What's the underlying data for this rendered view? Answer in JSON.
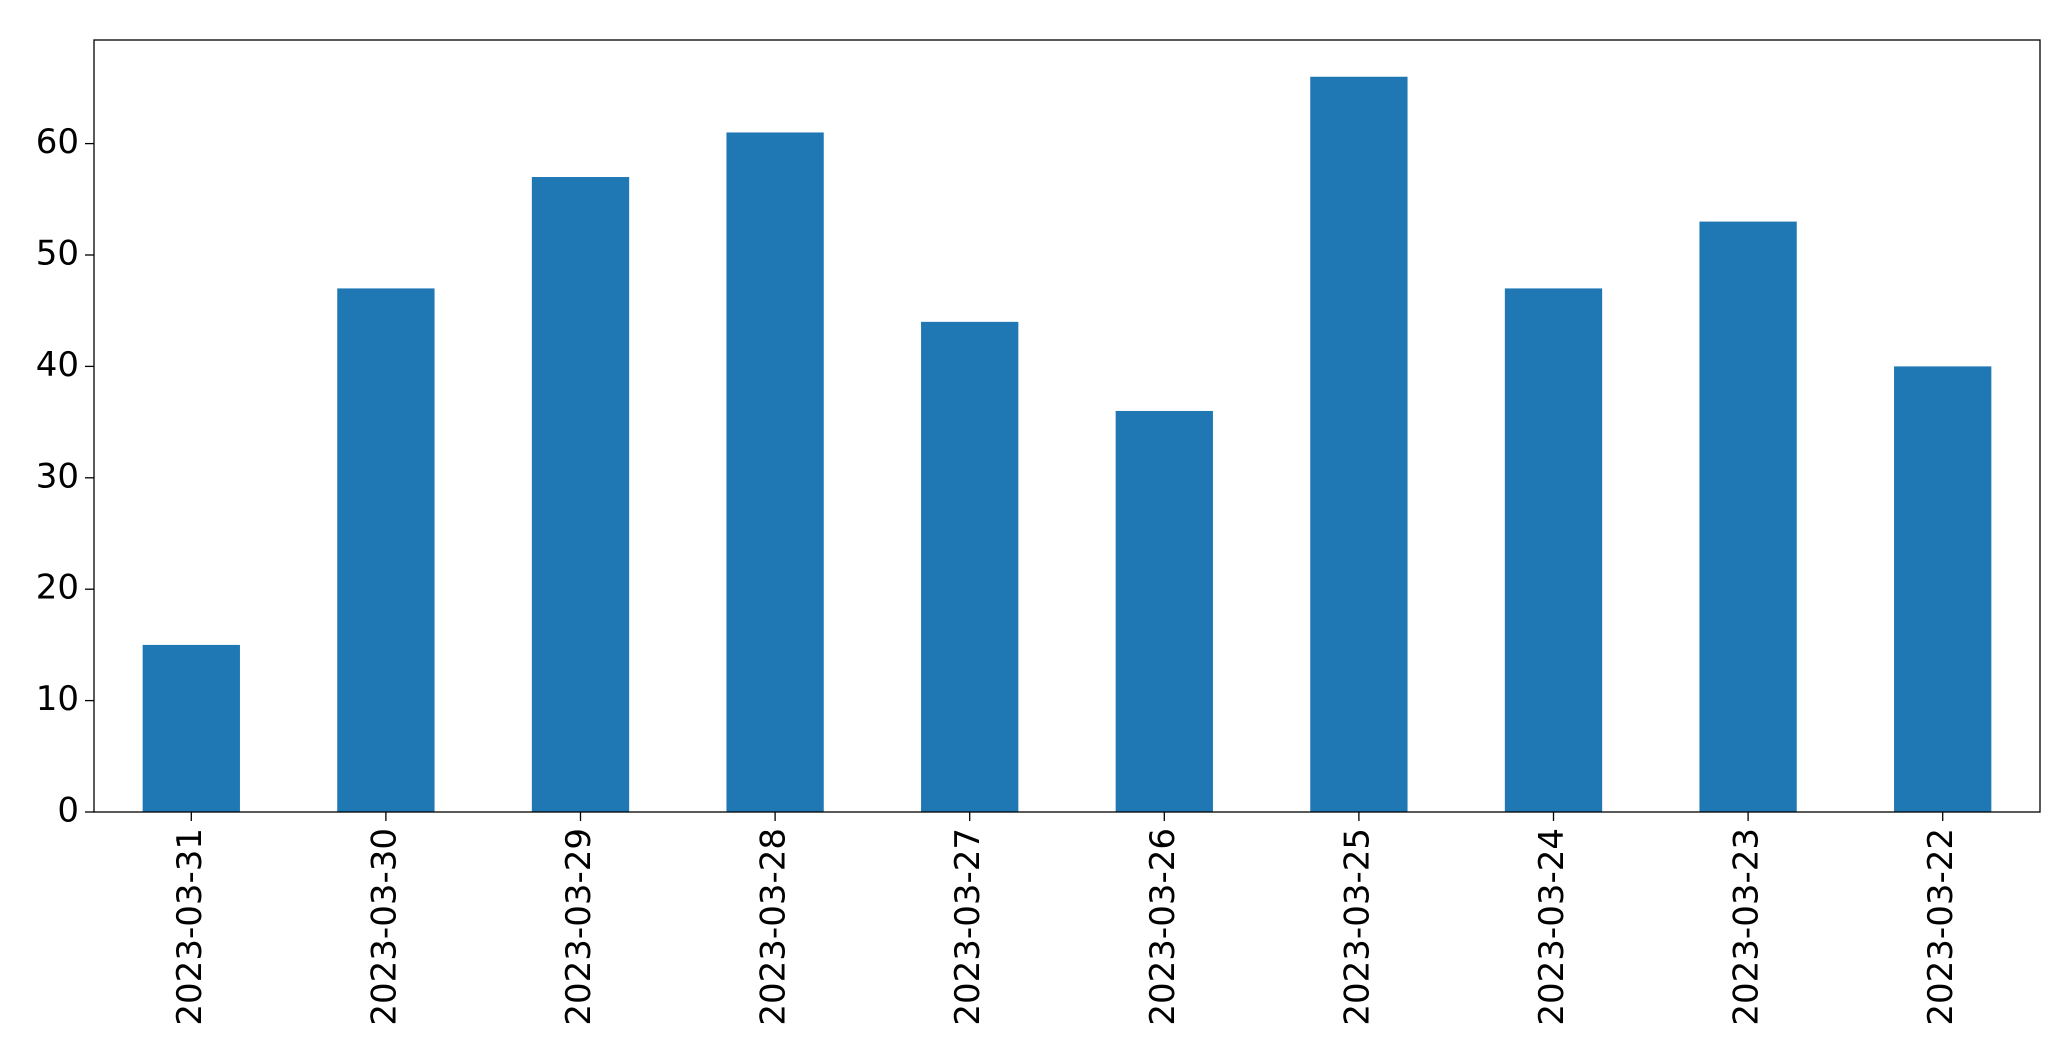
{
  "chart_data": {
    "type": "bar",
    "categories": [
      "2023-03-31",
      "2023-03-30",
      "2023-03-29",
      "2023-03-28",
      "2023-03-27",
      "2023-03-26",
      "2023-03-25",
      "2023-03-24",
      "2023-03-23",
      "2023-03-22"
    ],
    "values": [
      15,
      47,
      57,
      61,
      44,
      36,
      66,
      47,
      53,
      40
    ],
    "color": "#1f77b4",
    "ylim": [
      0,
      69.3
    ],
    "yticks": [
      0,
      10,
      20,
      30,
      40,
      50,
      60
    ],
    "grid": false
  }
}
